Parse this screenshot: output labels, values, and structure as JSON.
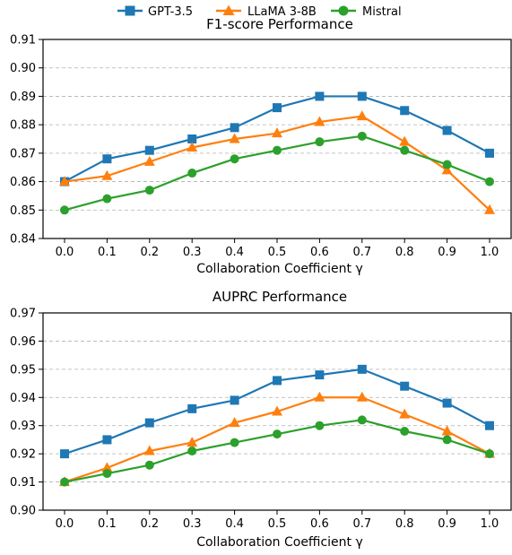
{
  "chart_data": [
    {
      "type": "line",
      "title": "F1-score Performance",
      "xlabel": "Collaboration Coefficient γ",
      "ylabel": "",
      "x": [
        0.0,
        0.1,
        0.2,
        0.3,
        0.4,
        0.5,
        0.6,
        0.7,
        0.8,
        0.9,
        1.0
      ],
      "xtick_labels": [
        "0.0",
        "0.1",
        "0.2",
        "0.3",
        "0.4",
        "0.5",
        "0.6",
        "0.7",
        "0.8",
        "0.9",
        "1.0"
      ],
      "ylim": [
        0.84,
        0.91
      ],
      "yticks": [
        0.84,
        0.85,
        0.86,
        0.87,
        0.88,
        0.89,
        0.9,
        0.91
      ],
      "ytick_labels": [
        "0.84",
        "0.85",
        "0.86",
        "0.87",
        "0.88",
        "0.89",
        "0.90",
        "0.91"
      ],
      "grid": "y-dashed",
      "series": [
        {
          "name": "GPT-3.5",
          "color": "#1f77b4",
          "marker": "square",
          "values": [
            0.86,
            0.868,
            0.871,
            0.875,
            0.879,
            0.886,
            0.89,
            0.89,
            0.885,
            0.878,
            0.87
          ]
        },
        {
          "name": "LLaMA 3-8B",
          "color": "#ff7f0e",
          "marker": "triangle",
          "values": [
            0.86,
            0.862,
            0.867,
            0.872,
            0.875,
            0.877,
            0.881,
            0.883,
            0.874,
            0.864,
            0.85
          ]
        },
        {
          "name": "Mistral",
          "color": "#2ca02c",
          "marker": "circle",
          "values": [
            0.85,
            0.854,
            0.857,
            0.863,
            0.868,
            0.871,
            0.874,
            0.876,
            0.871,
            0.866,
            0.86
          ]
        }
      ]
    },
    {
      "type": "line",
      "title": "AUPRC Performance",
      "xlabel": "Collaboration Coefficient γ",
      "ylabel": "",
      "x": [
        0.0,
        0.1,
        0.2,
        0.3,
        0.4,
        0.5,
        0.6,
        0.7,
        0.8,
        0.9,
        1.0
      ],
      "xtick_labels": [
        "0.0",
        "0.1",
        "0.2",
        "0.3",
        "0.4",
        "0.5",
        "0.6",
        "0.7",
        "0.8",
        "0.9",
        "1.0"
      ],
      "ylim": [
        0.9,
        0.97
      ],
      "yticks": [
        0.9,
        0.91,
        0.92,
        0.93,
        0.94,
        0.95,
        0.96,
        0.97
      ],
      "ytick_labels": [
        "0.90",
        "0.91",
        "0.92",
        "0.93",
        "0.94",
        "0.95",
        "0.96",
        "0.97"
      ],
      "grid": "y-dashed",
      "series": [
        {
          "name": "GPT-3.5",
          "color": "#1f77b4",
          "marker": "square",
          "values": [
            0.92,
            0.925,
            0.931,
            0.936,
            0.939,
            0.946,
            0.948,
            0.95,
            0.944,
            0.938,
            0.93
          ]
        },
        {
          "name": "LLaMA 3-8B",
          "color": "#ff7f0e",
          "marker": "triangle",
          "values": [
            0.91,
            0.915,
            0.921,
            0.924,
            0.931,
            0.935,
            0.94,
            0.94,
            0.934,
            0.928,
            0.92
          ]
        },
        {
          "name": "Mistral",
          "color": "#2ca02c",
          "marker": "circle",
          "values": [
            0.91,
            0.913,
            0.916,
            0.921,
            0.924,
            0.927,
            0.93,
            0.932,
            0.928,
            0.925,
            0.92
          ]
        }
      ]
    }
  ],
  "legend": {
    "placement": "top-center",
    "entries": [
      {
        "label": "GPT-3.5",
        "color": "#1f77b4",
        "marker": "square"
      },
      {
        "label": "LLaMA 3-8B",
        "color": "#ff7f0e",
        "marker": "triangle"
      },
      {
        "label": "Mistral",
        "color": "#2ca02c",
        "marker": "circle"
      }
    ]
  }
}
